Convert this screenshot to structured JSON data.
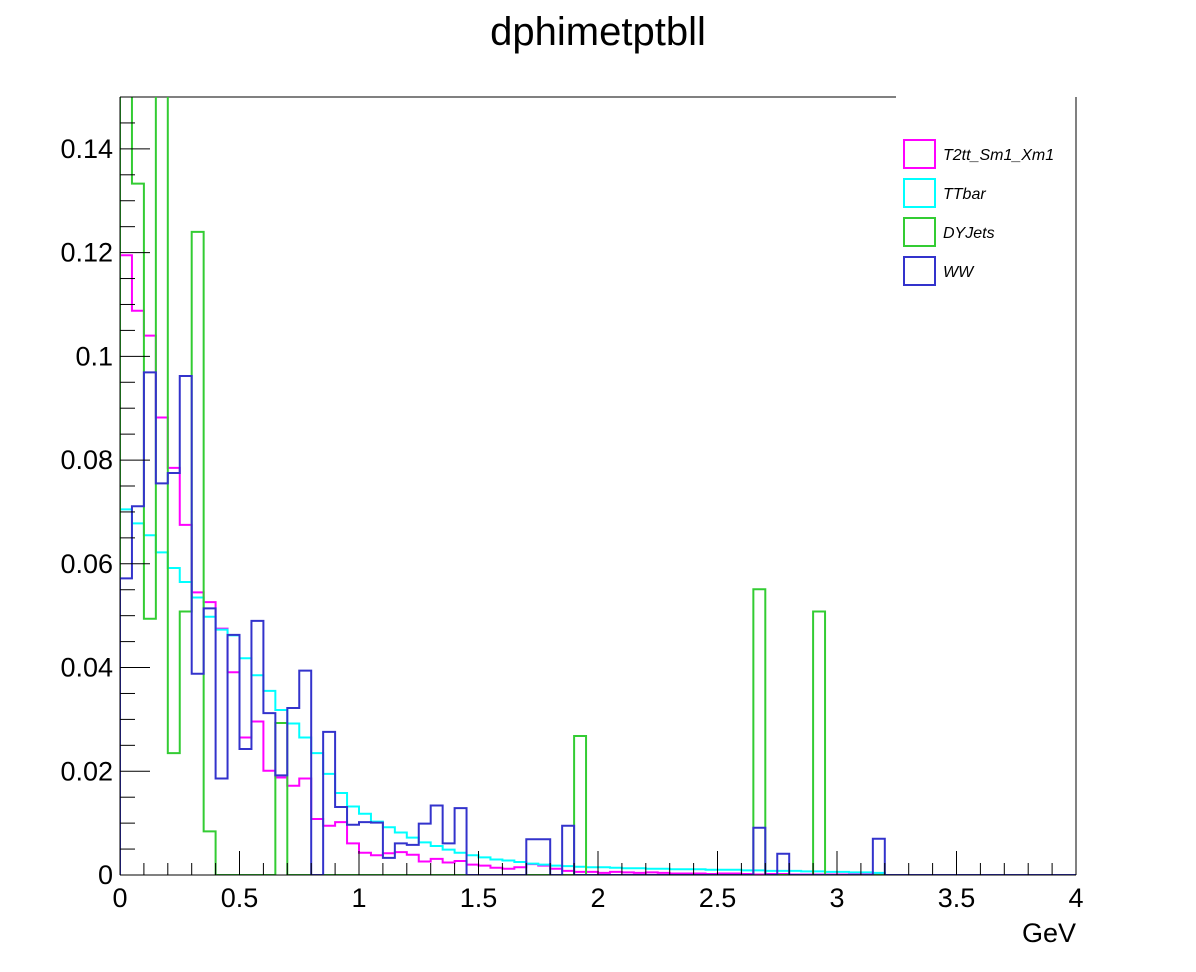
{
  "chart_data": {
    "type": "histogram",
    "title": "dphimetptbll",
    "xlabel": "GeV",
    "ylabel": "",
    "xlim": [
      0,
      4
    ],
    "ylim": [
      0,
      0.15
    ],
    "x_ticks": [
      "0",
      "0.5",
      "1",
      "1.5",
      "2",
      "2.5",
      "3",
      "3.5",
      "4"
    ],
    "y_ticks": [
      "0",
      "0.02",
      "0.04",
      "0.06",
      "0.08",
      "0.1",
      "0.12",
      "0.14"
    ],
    "bin_width": 0.05,
    "legend_position": "top-right",
    "grid": false,
    "series": [
      {
        "name": "T2tt_Sm1_Xm1",
        "color": "#ff00ff",
        "values": [
          0.1195,
          0.1088,
          0.104,
          0.0882,
          0.0785,
          0.0675,
          0.0545,
          0.0526,
          0.0475,
          0.0391,
          0.0265,
          0.0296,
          0.0201,
          0.0188,
          0.0172,
          0.0186,
          0.0108,
          0.0095,
          0.0102,
          0.0061,
          0.0043,
          0.0038,
          0.0042,
          0.0044,
          0.0039,
          0.0026,
          0.0031,
          0.0024,
          0.0027,
          0.002,
          0.0018,
          0.0014,
          0.0012,
          0.0015,
          0.0021,
          0.0018,
          0.0012,
          0.0008,
          0.0006,
          0.0006,
          0.0004,
          0.0006,
          0.0005,
          0.0004,
          0.0005,
          0.0004,
          0.0003,
          0.0003,
          0.0003,
          0.0002,
          0.0003,
          0.0003,
          0.0002,
          0.0001,
          0.0002,
          0.0002,
          0.0001,
          0.0001,
          0.0001,
          0.0001,
          0.0001,
          0.0001,
          0.0001,
          0.0001,
          0,
          0,
          0,
          0,
          0,
          0,
          0,
          0,
          0,
          0,
          0,
          0,
          0,
          0,
          0,
          0
        ]
      },
      {
        "name": "TTbar",
        "color": "#00ffff",
        "values": [
          0.0705,
          0.0678,
          0.0655,
          0.0622,
          0.0592,
          0.0565,
          0.0535,
          0.0498,
          0.0473,
          0.0462,
          0.0418,
          0.0385,
          0.0355,
          0.0318,
          0.0292,
          0.0265,
          0.0235,
          0.0195,
          0.0158,
          0.0132,
          0.0118,
          0.0103,
          0.0092,
          0.0082,
          0.0072,
          0.0063,
          0.0056,
          0.0049,
          0.0043,
          0.0038,
          0.0034,
          0.003,
          0.0028,
          0.0025,
          0.0022,
          0.002,
          0.0018,
          0.0017,
          0.0016,
          0.0015,
          0.0015,
          0.0014,
          0.0013,
          0.0013,
          0.0012,
          0.0012,
          0.0011,
          0.0011,
          0.0011,
          0.001,
          0.001,
          0.001,
          0.0009,
          0.0009,
          0.0008,
          0.0008,
          0.0008,
          0.0007,
          0.0007,
          0.0006,
          0.0006,
          0.0005,
          0.0005,
          0.0004,
          0,
          0,
          0,
          0,
          0,
          0,
          0,
          0,
          0,
          0,
          0,
          0,
          0,
          0,
          0,
          0
        ]
      },
      {
        "name": "DYJets",
        "color": "#33cc33",
        "values": [
          0.1534,
          0.1333,
          0.0494,
          0.1588,
          0.0235,
          0.0508,
          0.124,
          0.0084,
          0,
          0,
          0,
          0,
          0,
          0.0293,
          0,
          0,
          0,
          0,
          0,
          0,
          0,
          0,
          0,
          0,
          0,
          0,
          0,
          0,
          0,
          0,
          0,
          0,
          0,
          0,
          0,
          0,
          0,
          0,
          0.0268,
          0,
          0,
          0,
          0,
          0,
          0,
          0,
          0,
          0,
          0,
          0,
          0,
          0,
          0,
          0.0551,
          0,
          0,
          0,
          0,
          0.0508,
          0,
          0,
          0,
          0,
          0,
          0,
          0,
          0,
          0,
          0,
          0,
          0,
          0,
          0,
          0,
          0,
          0,
          0,
          0,
          0
        ]
      },
      {
        "name": "WW",
        "color": "#3333cc",
        "values": [
          0.0572,
          0.0711,
          0.0969,
          0.0755,
          0.0775,
          0.0962,
          0.0388,
          0.0514,
          0.0186,
          0.0463,
          0.0243,
          0.049,
          0.0312,
          0.0192,
          0.0322,
          0.0394,
          0,
          0.0276,
          0.0131,
          0.0097,
          0.0102,
          0.0101,
          0.0033,
          0.0061,
          0.0058,
          0.0099,
          0.0134,
          0.0061,
          0.0129,
          0,
          0,
          0,
          0,
          0,
          0.0069,
          0.0069,
          0,
          0.0095,
          0,
          0,
          0,
          0,
          0,
          0,
          0,
          0,
          0,
          0,
          0,
          0,
          0,
          0,
          0,
          0.0091,
          0,
          0.0041,
          0,
          0,
          0,
          0,
          0,
          0,
          0,
          0.007,
          0,
          0,
          0,
          0,
          0,
          0,
          0,
          0,
          0,
          0,
          0,
          0,
          0,
          0,
          0,
          0
        ]
      }
    ]
  }
}
